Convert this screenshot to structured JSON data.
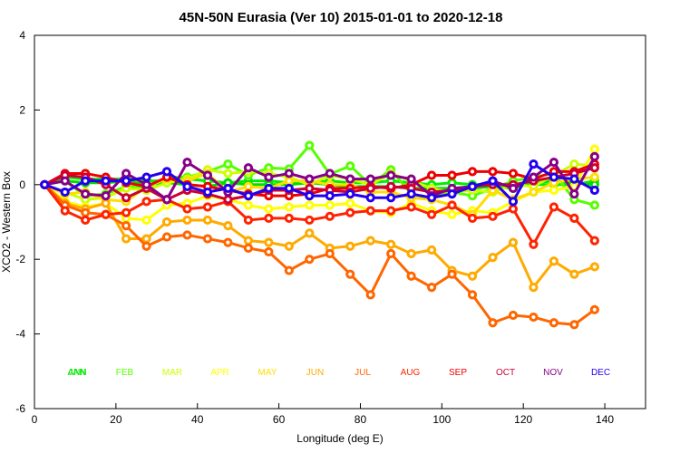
{
  "chart_data": {
    "type": "line",
    "title": "45N-50N Eurasia (Ver 10)   2015-01-01 to 2020-12-18",
    "xlabel": "Longitude (deg E)",
    "ylabel": "XCO2 - Western Box",
    "xlim": [
      0,
      150
    ],
    "ylim": [
      -6,
      4
    ],
    "xticks": [
      0,
      20,
      40,
      60,
      80,
      100,
      120,
      140
    ],
    "yticks": [
      -6,
      -4,
      -2,
      0,
      2,
      4
    ],
    "grid": false,
    "legend_position": "bottom inside plot",
    "x": [
      2.5,
      7.5,
      12.5,
      17.5,
      22.5,
      27.5,
      32.5,
      37.5,
      42.5,
      47.5,
      52.5,
      57.5,
      62.5,
      67.5,
      72.5,
      77.5,
      82.5,
      87.5,
      92.5,
      97.5,
      102.5,
      107.5,
      112.5,
      117.5,
      122.5,
      127.5,
      132.5,
      137.5
    ],
    "series": [
      {
        "name": "JAN",
        "color": "#00ee00",
        "values": [
          0,
          0.2,
          0.15,
          0.15,
          0.15,
          0.1,
          0.1,
          0.15,
          0.1,
          0.05,
          0.1,
          0.1,
          0.05,
          0.05,
          0.1,
          0.05,
          0.05,
          0.1,
          0.05,
          0.0,
          0.05,
          0.0,
          0.0,
          0.0,
          0.0,
          0.0,
          0.0,
          0.1
        ]
      },
      {
        "name": "ANN",
        "color": "#00dd00",
        "values": [
          0,
          0.1,
          0.05,
          0.05,
          0.1,
          0.0,
          0.05,
          0.0,
          -0.05,
          0.05,
          0.0,
          0.0,
          0.0,
          0.05,
          0.0,
          -0.05,
          -0.05,
          -0.05,
          -0.1,
          -0.1,
          -0.1,
          -0.1,
          -0.05,
          -0.1,
          0.05,
          0.1,
          0.05,
          0.0
        ]
      },
      {
        "name": "FEB",
        "color": "#55ff00",
        "values": [
          0,
          0.1,
          -0.3,
          -0.25,
          -0.05,
          -0.1,
          0.2,
          0.2,
          0.35,
          0.55,
          0.25,
          0.45,
          0.42,
          1.05,
          0.28,
          0.5,
          0.0,
          0.4,
          -0.25,
          -0.35,
          -0.2,
          -0.3,
          -0.1,
          0.1,
          0.2,
          0.3,
          -0.4,
          -0.55
        ]
      },
      {
        "name": "MAR",
        "color": "#ccff00",
        "values": [
          0,
          -0.2,
          -0.4,
          -0.35,
          -0.1,
          -0.15,
          0.05,
          0.15,
          0.4,
          0.3,
          0.35,
          0.3,
          0.2,
          0.0,
          0.25,
          0.15,
          0.0,
          0.3,
          0.1,
          -0.1,
          -0.2,
          -0.15,
          -0.2,
          0.0,
          -0.05,
          0.25,
          0.55,
          0.5
        ]
      },
      {
        "name": "APR",
        "color": "#ffff00",
        "values": [
          0,
          -0.45,
          -0.6,
          -0.5,
          -0.9,
          -0.95,
          -0.55,
          -0.5,
          -0.3,
          -0.4,
          -0.55,
          -0.65,
          -0.6,
          -0.55,
          -0.55,
          -0.5,
          -0.7,
          -0.75,
          -0.5,
          -0.7,
          -0.8,
          -0.7,
          -0.75,
          -0.45,
          -0.2,
          -0.15,
          -0.05,
          0.95
        ]
      },
      {
        "name": "MAY",
        "color": "#ffdd00",
        "values": [
          0,
          -0.25,
          -0.2,
          -0.4,
          -0.45,
          -0.05,
          0.15,
          0.1,
          0.3,
          -0.2,
          -0.05,
          -0.1,
          0.1,
          0.1,
          0.0,
          0.0,
          -0.2,
          -0.2,
          -0.35,
          -0.4,
          -0.55,
          -0.8,
          -0.15,
          -0.4,
          -0.2,
          0.05,
          0.15,
          0.2
        ]
      },
      {
        "name": "JUN",
        "color": "#ffaa00",
        "values": [
          0,
          -0.5,
          -0.65,
          -0.5,
          -1.45,
          -1.45,
          -1.0,
          -0.95,
          -0.95,
          -1.1,
          -1.5,
          -1.55,
          -1.65,
          -1.3,
          -1.7,
          -1.65,
          -1.5,
          -1.6,
          -1.85,
          -1.75,
          -2.3,
          -2.45,
          -1.95,
          -1.55,
          -2.75,
          -2.05,
          -2.4,
          -2.2
        ]
      },
      {
        "name": "JUL",
        "color": "#ff6600",
        "values": [
          0,
          -0.55,
          -0.75,
          -0.8,
          -1.1,
          -1.65,
          -1.4,
          -1.35,
          -1.45,
          -1.55,
          -1.7,
          -1.8,
          -2.3,
          -2.0,
          -1.85,
          -2.4,
          -2.95,
          -1.85,
          -2.45,
          -2.75,
          -2.4,
          -2.95,
          -3.7,
          -3.5,
          -3.55,
          -3.7,
          -3.75,
          -3.35
        ]
      },
      {
        "name": "AUG",
        "color": "#ff2200",
        "values": [
          0,
          -0.7,
          -0.95,
          -0.8,
          -0.75,
          -0.45,
          -0.4,
          -0.65,
          -0.6,
          -0.45,
          -0.95,
          -0.9,
          -0.9,
          -0.95,
          -0.85,
          -0.75,
          -0.7,
          -0.7,
          -0.6,
          -0.8,
          -0.55,
          -0.9,
          -0.85,
          -0.65,
          -1.6,
          -0.6,
          -0.9,
          -1.5
        ]
      },
      {
        "name": "SEP",
        "color": "#ee0000",
        "values": [
          0,
          0.3,
          0.3,
          0.2,
          0.05,
          -0.05,
          0.2,
          0.0,
          -0.05,
          -0.15,
          -0.25,
          -0.3,
          -0.3,
          -0.25,
          -0.1,
          -0.1,
          -0.05,
          -0.1,
          0.0,
          0.25,
          0.25,
          0.35,
          0.35,
          0.3,
          0.15,
          0.35,
          0.35,
          0.55
        ]
      },
      {
        "name": "OCT",
        "color": "#cc0033",
        "values": [
          0,
          0.25,
          0.2,
          0.0,
          -0.35,
          -0.1,
          -0.4,
          -0.15,
          -0.25,
          -0.4,
          -0.3,
          -0.15,
          -0.15,
          -0.1,
          -0.15,
          -0.2,
          -0.1,
          -0.05,
          -0.1,
          -0.2,
          -0.15,
          -0.05,
          0.0,
          0.0,
          0.1,
          0.2,
          0.3,
          0.45
        ]
      },
      {
        "name": "NOV",
        "color": "#880088",
        "values": [
          0,
          0.1,
          -0.25,
          -0.3,
          0.3,
          0.0,
          -0.4,
          0.6,
          0.25,
          -0.2,
          0.45,
          0.2,
          0.3,
          0.15,
          0.3,
          0.15,
          0.15,
          0.25,
          0.15,
          -0.3,
          -0.1,
          -0.05,
          0.1,
          -0.1,
          0.2,
          0.6,
          -0.25,
          0.75
        ]
      },
      {
        "name": "DEC",
        "color": "#2200ee",
        "values": [
          0,
          -0.2,
          0.1,
          0.1,
          0.1,
          0.2,
          0.35,
          -0.05,
          -0.2,
          -0.1,
          -0.3,
          -0.1,
          -0.1,
          -0.3,
          -0.3,
          -0.25,
          -0.35,
          -0.35,
          -0.25,
          -0.35,
          -0.25,
          -0.05,
          0.1,
          -0.45,
          0.55,
          0.2,
          0.15,
          -0.15
        ]
      }
    ],
    "legend": [
      {
        "label": "ANN",
        "color": "#00dd00"
      },
      {
        "label": "JAN",
        "color": "#00ee00"
      },
      {
        "label": "FEB",
        "color": "#55ff00"
      },
      {
        "label": "MAR",
        "color": "#ccff00"
      },
      {
        "label": "APR",
        "color": "#ffff00"
      },
      {
        "label": "MAY",
        "color": "#ffdd00"
      },
      {
        "label": "JUN",
        "color": "#ffaa00"
      },
      {
        "label": "JUL",
        "color": "#ff6600"
      },
      {
        "label": "AUG",
        "color": "#ff2200"
      },
      {
        "label": "SEP",
        "color": "#ee0000"
      },
      {
        "label": "OCT",
        "color": "#cc0033"
      },
      {
        "label": "NOV",
        "color": "#880088"
      },
      {
        "label": "DEC",
        "color": "#2200ee"
      }
    ],
    "legend_y_value": -5.0
  }
}
